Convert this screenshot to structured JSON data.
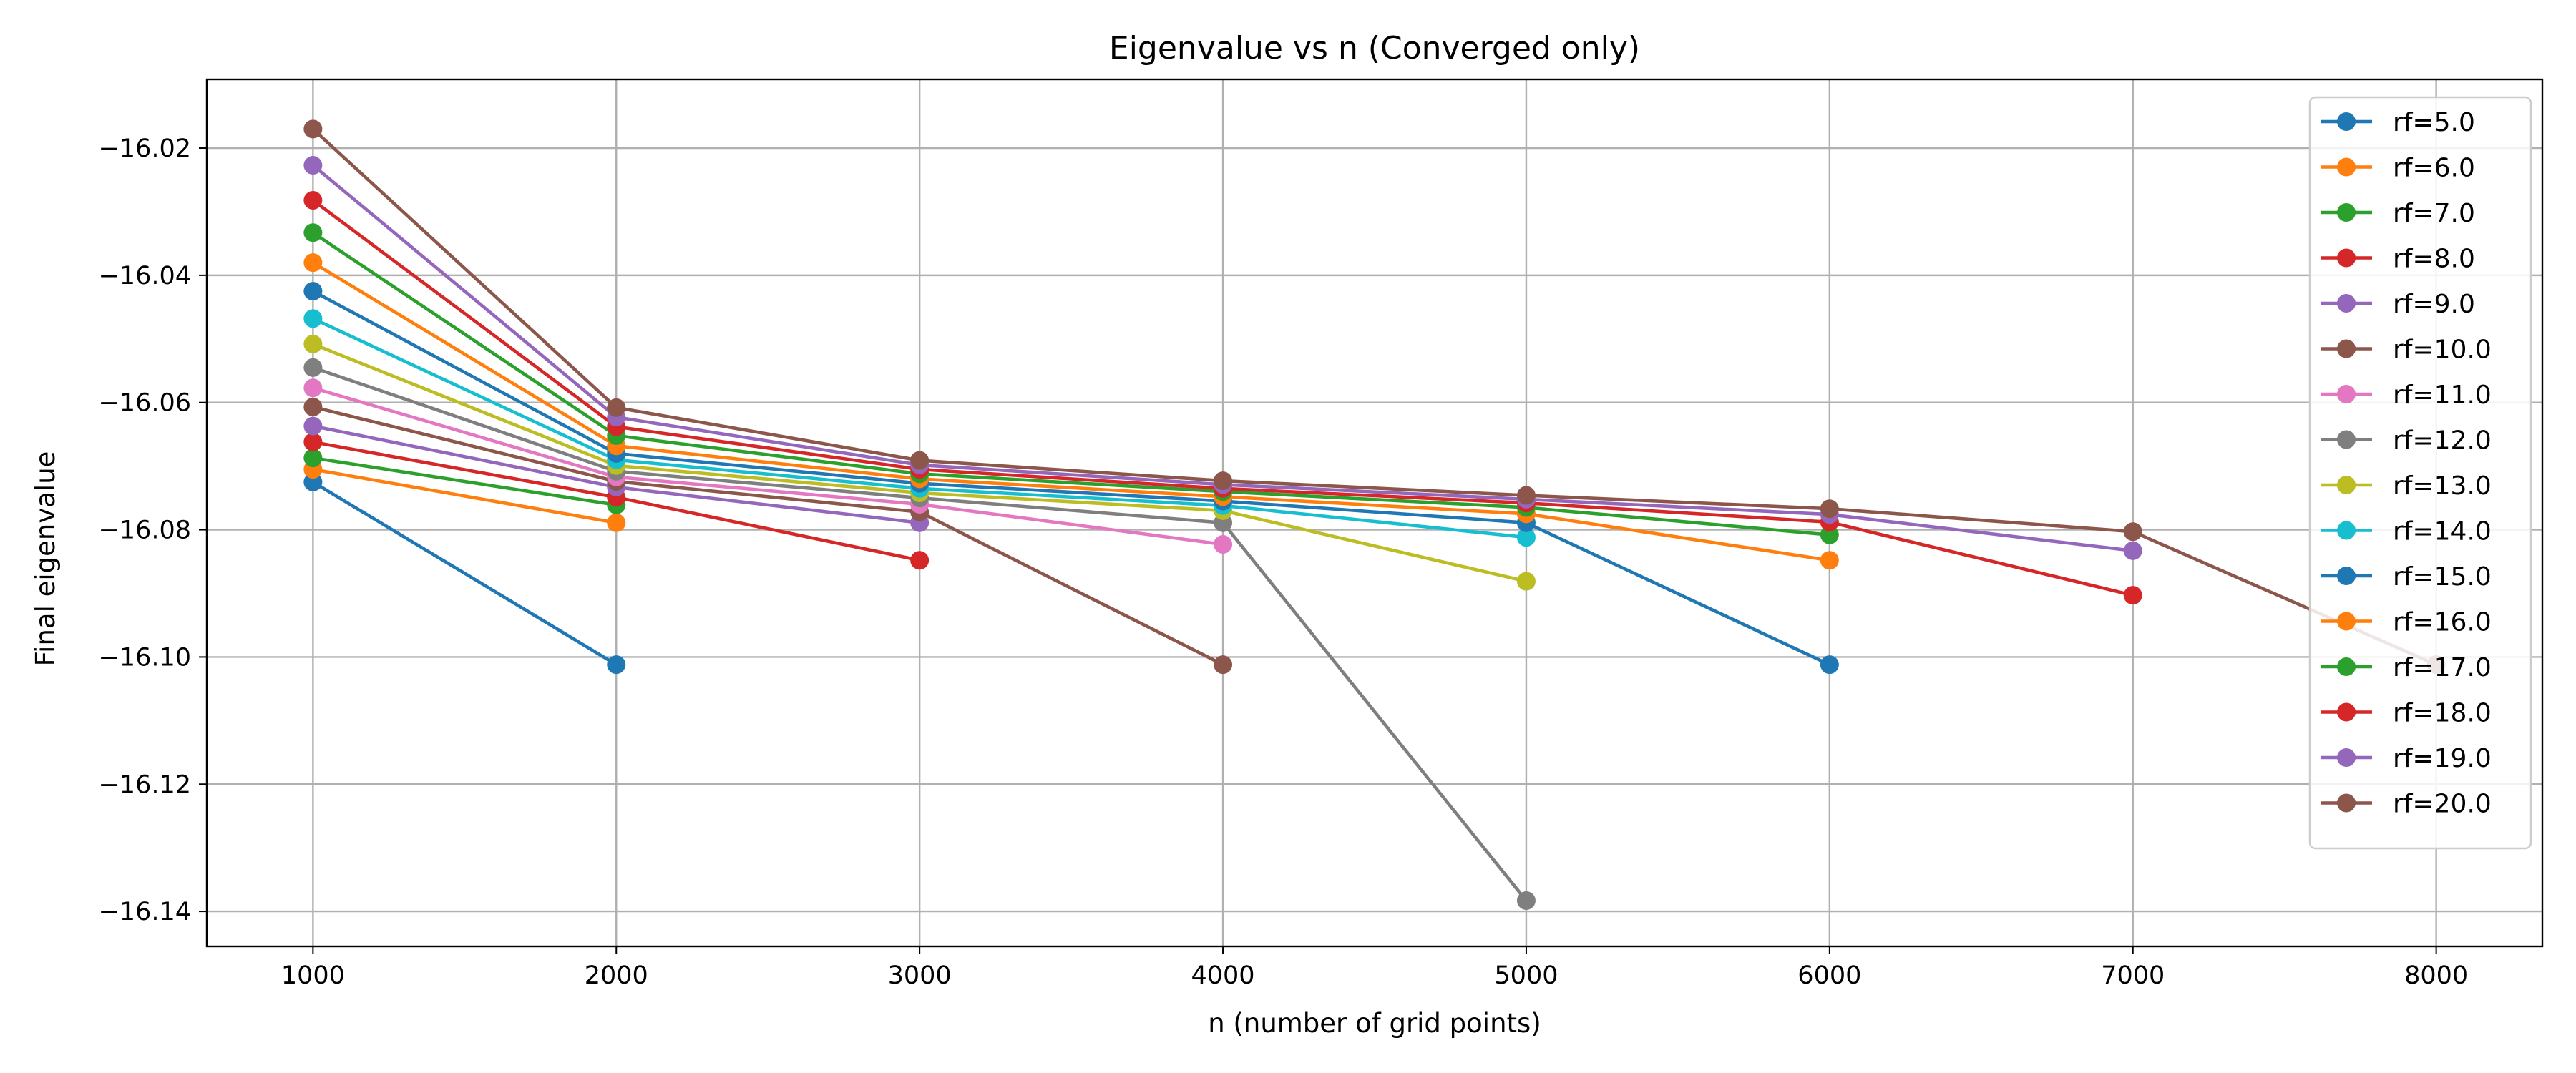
{
  "chart_data": {
    "type": "line",
    "title": "Eigenvalue vs n (Converged only)",
    "xlabel": "n (number of grid points)",
    "ylabel": "Final eigenvalue",
    "xlim": [
      650,
      8350
    ],
    "ylim": [
      -16.1455,
      -16.0092
    ],
    "xticks": [
      1000,
      2000,
      3000,
      4000,
      5000,
      6000,
      7000,
      8000
    ],
    "yticks": [
      -16.02,
      -16.04,
      -16.06,
      -16.08,
      -16.1,
      -16.12,
      -16.14
    ],
    "xtick_labels": [
      "1000",
      "2000",
      "3000",
      "4000",
      "5000",
      "6000",
      "7000",
      "8000"
    ],
    "ytick_labels": [
      "−16.02",
      "−16.04",
      "−16.06",
      "−16.08",
      "−16.10",
      "−16.12",
      "−16.14"
    ],
    "grid": true,
    "legend_position": "top-right",
    "marker": "circle",
    "series": [
      {
        "name": "rf=5.0",
        "color": "#1f77b4",
        "x": [
          1000,
          2000
        ],
        "y": [
          -16.0725,
          -16.1012
        ]
      },
      {
        "name": "rf=6.0",
        "color": "#ff7f0e",
        "x": [
          1000,
          2000
        ],
        "y": [
          -16.0705,
          -16.0789
        ]
      },
      {
        "name": "rf=7.0",
        "color": "#2ca02c",
        "x": [
          1000,
          2000
        ],
        "y": [
          -16.0687,
          -16.0761
        ]
      },
      {
        "name": "rf=8.0",
        "color": "#d62728",
        "x": [
          1000,
          2000,
          3000
        ],
        "y": [
          -16.0662,
          -16.0749,
          -16.0848
        ]
      },
      {
        "name": "rf=9.0",
        "color": "#9467bd",
        "x": [
          1000,
          2000,
          3000
        ],
        "y": [
          -16.0637,
          -16.0733,
          -16.0789
        ]
      },
      {
        "name": "rf=10.0",
        "color": "#8c564b",
        "x": [
          1000,
          2000,
          3000,
          4000
        ],
        "y": [
          -16.0607,
          -16.0724,
          -16.0772,
          -16.1012
        ]
      },
      {
        "name": "rf=11.0",
        "color": "#e377c2",
        "x": [
          1000,
          2000,
          3000,
          4000
        ],
        "y": [
          -16.0577,
          -16.0717,
          -16.076,
          -16.0823
        ]
      },
      {
        "name": "rf=12.0",
        "color": "#7f7f7f",
        "x": [
          1000,
          2000,
          3000,
          4000,
          5000
        ],
        "y": [
          -16.0545,
          -16.0708,
          -16.075,
          -16.0789,
          -16.1383
        ]
      },
      {
        "name": "rf=13.0",
        "color": "#bcbd22",
        "x": [
          1000,
          2000,
          3000,
          4000,
          5000
        ],
        "y": [
          -16.0508,
          -16.0699,
          -16.0742,
          -16.077,
          -16.0881
        ]
      },
      {
        "name": "rf=14.0",
        "color": "#17becf",
        "x": [
          1000,
          2000,
          3000,
          4000,
          5000
        ],
        "y": [
          -16.0468,
          -16.069,
          -16.0735,
          -16.0762,
          -16.0812
        ]
      },
      {
        "name": "rf=15.0",
        "color": "#1f77b4",
        "x": [
          1000,
          2000,
          3000,
          4000,
          5000,
          6000
        ],
        "y": [
          -16.0425,
          -16.068,
          -16.0727,
          -16.0755,
          -16.0789,
          -16.1012
        ]
      },
      {
        "name": "rf=16.0",
        "color": "#ff7f0e",
        "x": [
          1000,
          2000,
          3000,
          4000,
          5000,
          6000
        ],
        "y": [
          -16.038,
          -16.0668,
          -16.072,
          -16.0748,
          -16.0775,
          -16.0848
        ]
      },
      {
        "name": "rf=17.0",
        "color": "#2ca02c",
        "x": [
          1000,
          2000,
          3000,
          4000,
          5000,
          6000
        ],
        "y": [
          -16.0333,
          -16.0652,
          -16.0712,
          -16.074,
          -16.0765,
          -16.0808
        ]
      },
      {
        "name": "rf=18.0",
        "color": "#d62728",
        "x": [
          1000,
          2000,
          3000,
          4000,
          5000,
          6000,
          7000
        ],
        "y": [
          -16.0282,
          -16.0638,
          -16.0705,
          -16.0735,
          -16.0758,
          -16.0788,
          -16.0903
        ]
      },
      {
        "name": "rf=19.0",
        "color": "#9467bd",
        "x": [
          1000,
          2000,
          3000,
          4000,
          5000,
          6000,
          7000
        ],
        "y": [
          -16.0227,
          -16.0623,
          -16.0698,
          -16.0729,
          -16.0752,
          -16.0776,
          -16.0833
        ]
      },
      {
        "name": "rf=20.0",
        "color": "#8c564b",
        "x": [
          1000,
          2000,
          3000,
          4000,
          5000,
          6000,
          7000,
          8000
        ],
        "y": [
          -16.017,
          -16.0608,
          -16.0691,
          -16.0723,
          -16.0746,
          -16.0767,
          -16.0803,
          -16.1012
        ]
      }
    ]
  }
}
